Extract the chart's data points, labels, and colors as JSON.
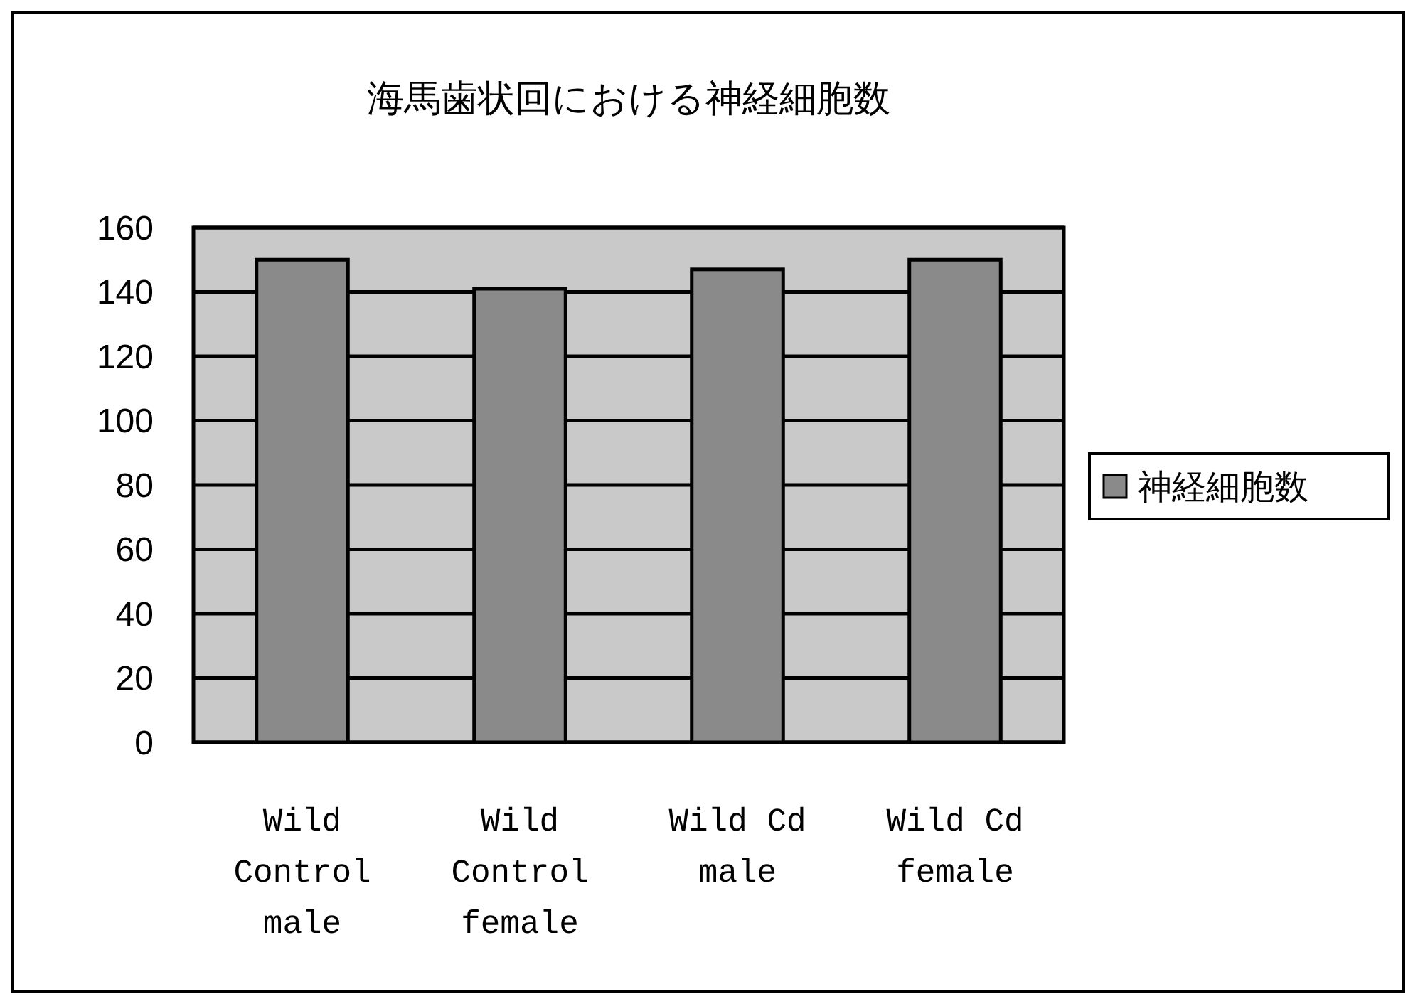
{
  "chart_data": {
    "type": "bar",
    "title": "海馬歯状回における神経細胞数",
    "categories": [
      "Wild Control male",
      "Wild Control female",
      "Wild Cd male",
      "Wild Cd female"
    ],
    "series": [
      {
        "name": "神経細胞数",
        "color": "#8a8a8a",
        "values": [
          150,
          141,
          147,
          150
        ]
      }
    ],
    "ylim": [
      0,
      160
    ],
    "yticks": [
      0,
      20,
      40,
      60,
      80,
      100,
      120,
      140,
      160
    ],
    "grid": "y",
    "legend": "right"
  }
}
